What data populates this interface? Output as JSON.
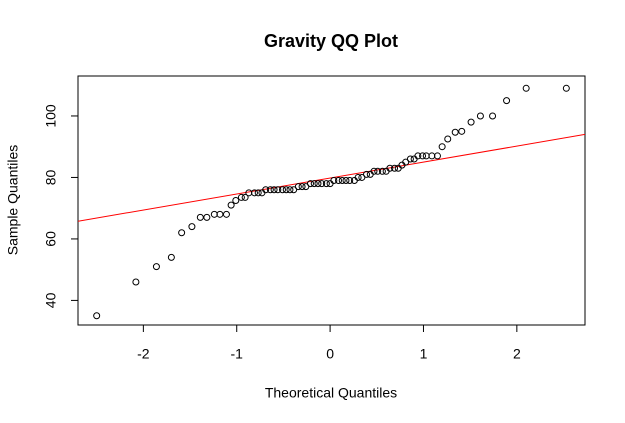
{
  "chart_data": {
    "type": "qq",
    "title": "Gravity QQ Plot",
    "x_label": "Theoretical Quantiles",
    "y_label": "Sample Quantiles",
    "x": [
      -2.5,
      -2.08,
      -1.86,
      -1.7,
      -1.59,
      -1.48,
      -1.39,
      -1.32,
      -1.24,
      -1.18,
      -1.11,
      -1.06,
      -1.01,
      -0.95,
      -0.91,
      -0.87,
      -0.81,
      -0.77,
      -0.73,
      -0.69,
      -0.64,
      -0.6,
      -0.56,
      -0.51,
      -0.47,
      -0.43,
      -0.39,
      -0.34,
      -0.3,
      -0.26,
      -0.21,
      -0.17,
      -0.13,
      -0.09,
      -0.04,
      0.0,
      0.04,
      0.09,
      0.13,
      0.17,
      0.21,
      0.26,
      0.3,
      0.34,
      0.39,
      0.43,
      0.47,
      0.51,
      0.56,
      0.6,
      0.64,
      0.69,
      0.73,
      0.77,
      0.81,
      0.86,
      0.9,
      0.94,
      0.99,
      1.03,
      1.09,
      1.15,
      1.2,
      1.26,
      1.34,
      1.41,
      1.51,
      1.61,
      1.74,
      1.89,
      2.1,
      2.53
    ],
    "y": [
      35,
      46,
      51,
      54,
      62,
      64,
      67,
      67,
      68,
      68,
      68,
      71,
      72.5,
      73.5,
      73.5,
      75,
      75,
      75,
      75,
      76,
      76,
      76,
      76,
      76,
      76,
      76,
      76,
      77,
      77,
      77,
      78,
      78,
      78,
      78,
      78,
      78,
      79,
      79,
      79,
      79,
      79,
      79,
      80,
      80,
      81,
      81,
      82,
      82,
      82,
      82,
      83,
      83,
      83,
      84,
      85,
      86,
      86,
      87,
      87,
      87,
      87,
      87,
      90,
      92.5,
      94.7,
      95,
      98,
      100,
      100,
      105,
      109,
      109
    ],
    "point_color": "#000000",
    "qqline": {
      "intercept": 79.8,
      "slope": 5.2,
      "color": "#ff0000"
    },
    "xlim": [
      -2.7,
      2.73
    ],
    "ylim": [
      32,
      113
    ],
    "xticks": [
      -2,
      -1,
      0,
      1,
      2
    ],
    "yticks": [
      40,
      60,
      80,
      100
    ]
  }
}
